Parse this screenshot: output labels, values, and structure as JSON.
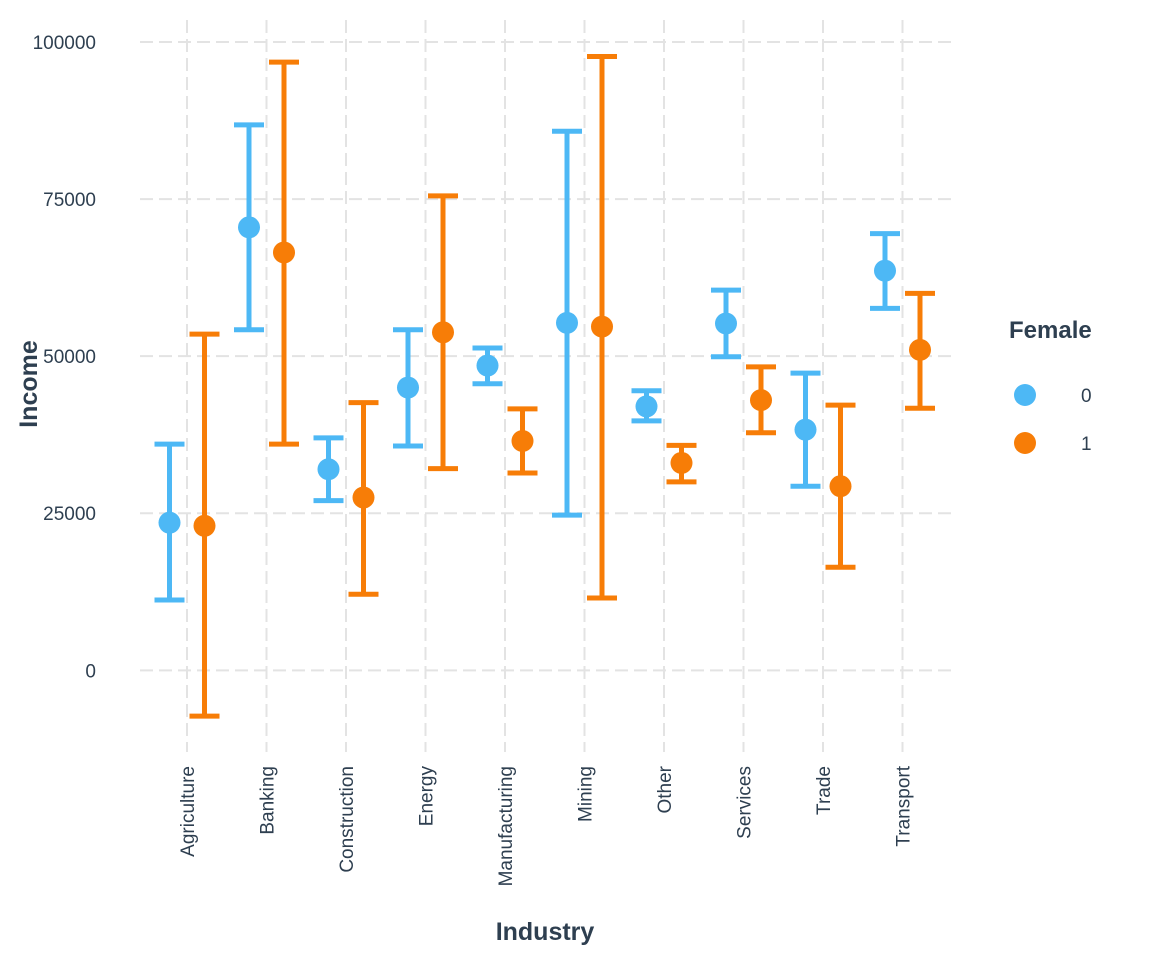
{
  "chart_data": {
    "type": "errorbar",
    "xlabel": "Industry",
    "ylabel": "Income",
    "categories": [
      "Agriculture",
      "Banking",
      "Construction",
      "Energy",
      "Manufacturing",
      "Mining",
      "Other",
      "Services",
      "Trade",
      "Transport"
    ],
    "y_ticks": [
      0,
      25000,
      50000,
      75000,
      100000
    ],
    "y_tick_labels": [
      "0",
      "25000",
      "50000",
      "75000",
      "100000"
    ],
    "ylim": [
      -13000,
      103500
    ],
    "grid": true,
    "legend": {
      "title": "Female",
      "position": "right",
      "entries": [
        {
          "label": "0",
          "color": "#4db8f5"
        },
        {
          "label": "1",
          "color": "#f77d07"
        }
      ]
    },
    "series": [
      {
        "name": "0",
        "color": "#4db8f5",
        "mean": [
          23500,
          70500,
          32000,
          45000,
          48500,
          55300,
          42000,
          55200,
          38300,
          63600
        ],
        "lower": [
          11200,
          54200,
          27000,
          35700,
          45600,
          24700,
          39700,
          49900,
          29300,
          57600
        ],
        "upper": [
          36000,
          86800,
          37000,
          54200,
          51300,
          85800,
          44500,
          60500,
          47300,
          69500
        ]
      },
      {
        "name": "1",
        "color": "#f77d07",
        "mean": [
          23000,
          66500,
          27500,
          53800,
          36500,
          54700,
          33000,
          43000,
          29300,
          51000
        ],
        "lower": [
          -7300,
          36000,
          12100,
          32100,
          31400,
          11500,
          30000,
          37800,
          16400,
          41700
        ],
        "upper": [
          53500,
          96800,
          42600,
          75500,
          41600,
          97700,
          35800,
          48300,
          42200,
          60000
        ]
      }
    ]
  }
}
